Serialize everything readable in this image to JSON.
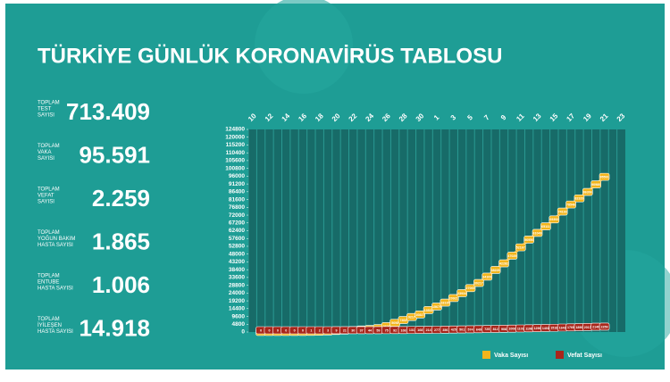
{
  "header": {
    "title": "TÜRKİYE GÜNLÜK KORONAVİRÜS TABLOSU"
  },
  "stats": [
    {
      "label": [
        "TOPLAM",
        "TEST",
        "SAYISI"
      ],
      "value": "713.409"
    },
    {
      "label": [
        "TOPLAM",
        "VAKA",
        "SAYISI"
      ],
      "value": "95.591"
    },
    {
      "label": [
        "TOPLAM",
        "VEFAT",
        "SAYISI"
      ],
      "value": "2.259"
    },
    {
      "label": [
        "TOPLAM",
        "YOĞUN BAKIM",
        "HASTA SAYISI"
      ],
      "value": "1.865"
    },
    {
      "label": [
        "TOPLAM",
        "ENTUBE",
        "HASTA SAYISI"
      ],
      "value": "1.006"
    },
    {
      "label": [
        "TOPLAM",
        "İYİLEŞEN",
        "HASTA SAYISI"
      ],
      "value": "14.918"
    }
  ],
  "chart_data": {
    "type": "line",
    "categories": [
      "10",
      null,
      "12",
      null,
      "14",
      null,
      "16",
      null,
      "18",
      null,
      "20",
      null,
      "22",
      null,
      "24",
      null,
      "26",
      null,
      "28",
      null,
      "30",
      null,
      "1",
      null,
      "3",
      null,
      "5",
      null,
      "7",
      null,
      "9",
      null,
      "11",
      null,
      "13",
      null,
      "15",
      null,
      "17",
      null,
      "19",
      null,
      "21",
      null,
      "23"
    ],
    "series": [
      {
        "name": "Vaka Sayısı",
        "color": "#f2b51c",
        "values": [
          null,
          1,
          1,
          5,
          6,
          18,
          47,
          98,
          191,
          359,
          670,
          947,
          1236,
          1529,
          1872,
          2433,
          3629,
          5698,
          7402,
          9217,
          10827,
          13531,
          15679,
          18135,
          20921,
          23934,
          27069,
          30217,
          34109,
          38226,
          42282,
          47029,
          52167,
          56956,
          61049,
          65111,
          69392,
          74193,
          78546,
          82329,
          86306,
          90980,
          95591,
          null,
          null
        ]
      },
      {
        "name": "Vefat Sayısı",
        "color": "#a8261b",
        "values": [
          null,
          0,
          0,
          0,
          0,
          0,
          0,
          1,
          2,
          3,
          9,
          21,
          30,
          37,
          44,
          59,
          75,
          92,
          108,
          131,
          168,
          214,
          277,
          356,
          425,
          501,
          574,
          649,
          725,
          812,
          908,
          1006,
          1101,
          1198,
          1296,
          1403,
          1518,
          1643,
          1769,
          1890,
          2017,
          2140,
          2259,
          null,
          null
        ]
      }
    ],
    "ylim": [
      0,
      124800
    ],
    "yticks": [
      0,
      4800,
      9600,
      14400,
      19200,
      24000,
      28800,
      33600,
      38400,
      43200,
      48000,
      52800,
      57600,
      62400,
      67200,
      72000,
      76800,
      81600,
      86400,
      91200,
      96000,
      100800,
      105600,
      110400,
      115200,
      120000,
      124800
    ],
    "legend": "bottom-right"
  }
}
